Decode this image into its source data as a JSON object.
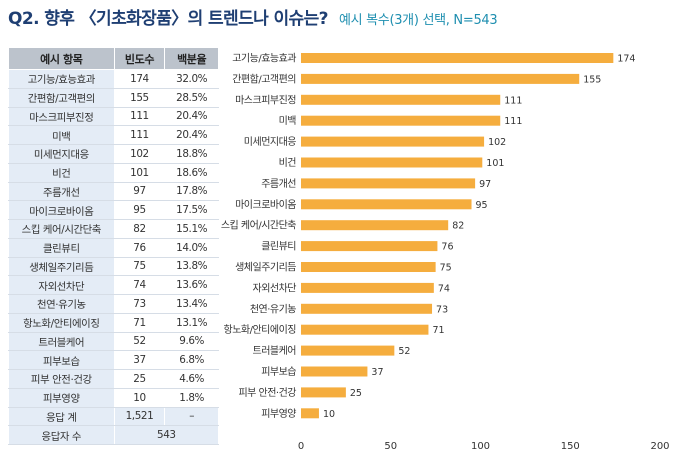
{
  "title": {
    "main": "Q2. 향후 〈기초화장품〉의 트렌드나 이슈는?",
    "sub": "예시 복수(3개) 선택, N=543"
  },
  "table": {
    "headers": [
      "예시 항목",
      "빈도수",
      "백분율"
    ],
    "rows": [
      {
        "item": "고기능/효능효과",
        "count": "174",
        "pct": "32.0%"
      },
      {
        "item": "간편함/고객편의",
        "count": "155",
        "pct": "28.5%"
      },
      {
        "item": "마스크피부진정",
        "count": "111",
        "pct": "20.4%"
      },
      {
        "item": "미백",
        "count": "111",
        "pct": "20.4%"
      },
      {
        "item": "미세먼지대응",
        "count": "102",
        "pct": "18.8%"
      },
      {
        "item": "비건",
        "count": "101",
        "pct": "18.6%"
      },
      {
        "item": "주름개선",
        "count": "97",
        "pct": "17.8%"
      },
      {
        "item": "마이크로바이옴",
        "count": "95",
        "pct": "17.5%"
      },
      {
        "item": "스킵 케어/시간단축",
        "count": "82",
        "pct": "15.1%"
      },
      {
        "item": "클린뷰티",
        "count": "76",
        "pct": "14.0%"
      },
      {
        "item": "생체일주기리듬",
        "count": "75",
        "pct": "13.8%"
      },
      {
        "item": "자외선차단",
        "count": "74",
        "pct": "13.6%"
      },
      {
        "item": "천연·유기농",
        "count": "73",
        "pct": "13.4%"
      },
      {
        "item": "항노화/안티에이징",
        "count": "71",
        "pct": "13.1%"
      },
      {
        "item": "트러블케어",
        "count": "52",
        "pct": "9.6%"
      },
      {
        "item": "피부보습",
        "count": "37",
        "pct": "6.8%"
      },
      {
        "item": "피부 안전·건강",
        "count": "25",
        "pct": "4.6%"
      },
      {
        "item": "피부영양",
        "count": "10",
        "pct": "1.8%"
      }
    ],
    "response_total": {
      "label": "응답 계",
      "count": "1,521",
      "pct": "–"
    },
    "respondents": {
      "label": "응답자 수",
      "count": "543"
    }
  },
  "chart_data": {
    "type": "bar",
    "orientation": "horizontal",
    "categories": [
      "고기능/효능효과",
      "간편함/고객편의",
      "마스크피부진정",
      "미백",
      "미세먼지대응",
      "비건",
      "주름개선",
      "마이크로바이옴",
      "스킵 케어/시간단축",
      "클린뷰티",
      "생체일주기리듬",
      "자외선차단",
      "천연·유기농",
      "항노화/안티에이징",
      "트러블케어",
      "피부보습",
      "피부 안전·건강",
      "피부영양"
    ],
    "values": [
      174,
      155,
      111,
      111,
      102,
      101,
      97,
      95,
      82,
      76,
      75,
      74,
      73,
      71,
      52,
      37,
      25,
      10
    ],
    "xlim": [
      0,
      200
    ],
    "xticks": [
      0,
      50,
      100,
      150,
      200
    ],
    "grid": false,
    "color": "#f5ad3e"
  }
}
